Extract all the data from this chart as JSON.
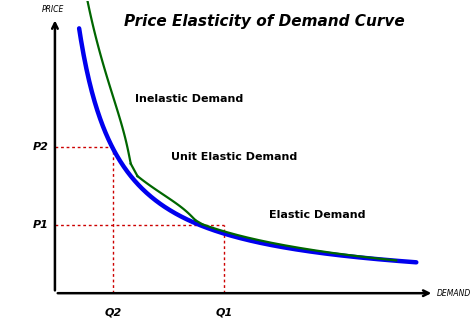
{
  "title": "Price Elasticity of Demand Curve",
  "xlabel": "DEMAND",
  "ylabel": "PRICE",
  "background_color": "#ffffff",
  "blue_color": "#0000ee",
  "green_color": "#006600",
  "red_color": "#cc0000",
  "p1_label": "P1",
  "p2_label": "P2",
  "q1_label": "Q1",
  "q2_label": "Q2",
  "p1_val": 0.31,
  "p2_val": 0.55,
  "q1_val": 0.5,
  "q2_val": 0.25,
  "inelastic_label": "Inelastic Demand",
  "unit_elastic_label": "Unit Elastic Demand",
  "elastic_label": "Elastic Demand",
  "title_fontsize": 11,
  "label_fontsize": 8,
  "axis_label_fontsize": 5.5,
  "pq_label_fontsize": 8
}
